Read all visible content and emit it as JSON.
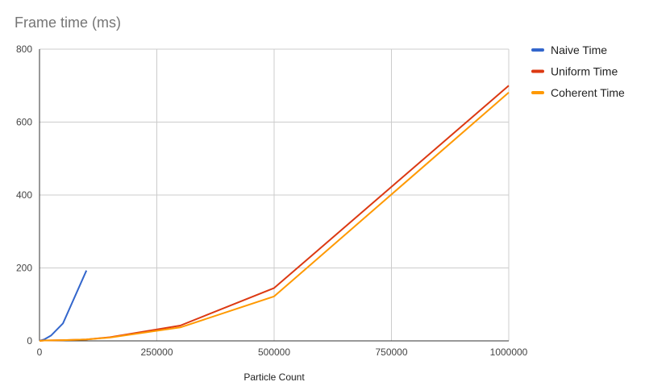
{
  "chart_data": {
    "type": "line",
    "title": "Frame time (ms)",
    "xlabel": "Particle Count",
    "ylabel": "",
    "xlim": [
      0,
      1000000
    ],
    "ylim": [
      0,
      800
    ],
    "x_ticks": [
      "0",
      "250000",
      "500000",
      "750000",
      "1000000"
    ],
    "y_ticks": [
      "0",
      "200",
      "400",
      "600",
      "800"
    ],
    "grid": true,
    "legend_position": "right",
    "series": [
      {
        "name": "Naive Time",
        "color": "#3366cc",
        "points": [
          [
            0,
            0
          ],
          [
            10000,
            4
          ],
          [
            25000,
            15
          ],
          [
            50000,
            48
          ],
          [
            100000,
            193
          ]
        ]
      },
      {
        "name": "Uniform Time",
        "color": "#dc3912",
        "points": [
          [
            0,
            0
          ],
          [
            10000,
            1
          ],
          [
            50000,
            2
          ],
          [
            100000,
            4
          ],
          [
            150000,
            10
          ],
          [
            300000,
            42
          ],
          [
            500000,
            145
          ],
          [
            1000000,
            700
          ]
        ]
      },
      {
        "name": "Coherent Time",
        "color": "#ff9900",
        "points": [
          [
            0,
            0
          ],
          [
            10000,
            1
          ],
          [
            50000,
            2
          ],
          [
            100000,
            4
          ],
          [
            150000,
            9
          ],
          [
            300000,
            37
          ],
          [
            500000,
            122
          ],
          [
            1000000,
            681
          ]
        ]
      }
    ]
  }
}
